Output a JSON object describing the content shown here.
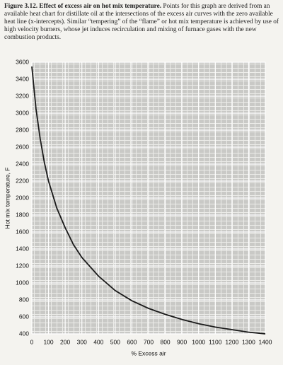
{
  "caption": {
    "label": "Figure 3.12.",
    "heading": "Effect of excess air on hot mix temperature.",
    "text": "Points for this graph are derived from an available heat chart for distillate oil at the intersections of the excess air curves with the zero available heat line (x-intercepts). Similar “tempering” of the “flame” or hot mix temperature is achieved by use of high velocity burners, whose jet induces recirculation and mixing of furnace gases with the new combustion products."
  },
  "chart_data": {
    "type": "line",
    "x_label": "% Excess air",
    "y_label": "Hot mix temperature, F",
    "x": [
      0,
      25,
      50,
      75,
      100,
      150,
      200,
      250,
      300,
      400,
      500,
      600,
      700,
      800,
      900,
      1000,
      1100,
      1200,
      1300,
      1400
    ],
    "series": [
      {
        "color": "#1a1a1a",
        "values": [
          3550,
          3050,
          2700,
          2420,
          2200,
          1880,
          1650,
          1450,
          1300,
          1080,
          910,
          790,
          700,
          630,
          570,
          520,
          480,
          450,
          420,
          400
        ]
      }
    ],
    "xlim": [
      0,
      1400
    ],
    "xticks": [
      0,
      100,
      200,
      300,
      400,
      500,
      600,
      700,
      800,
      900,
      1000,
      1100,
      1200,
      1300,
      1400
    ],
    "ylim": [
      400,
      3600
    ],
    "yticks": [
      400,
      600,
      800,
      1000,
      1200,
      1400,
      1600,
      1800,
      2000,
      2200,
      2400,
      2600,
      2800,
      3000,
      3200,
      3400,
      3600
    ],
    "grid": true
  }
}
